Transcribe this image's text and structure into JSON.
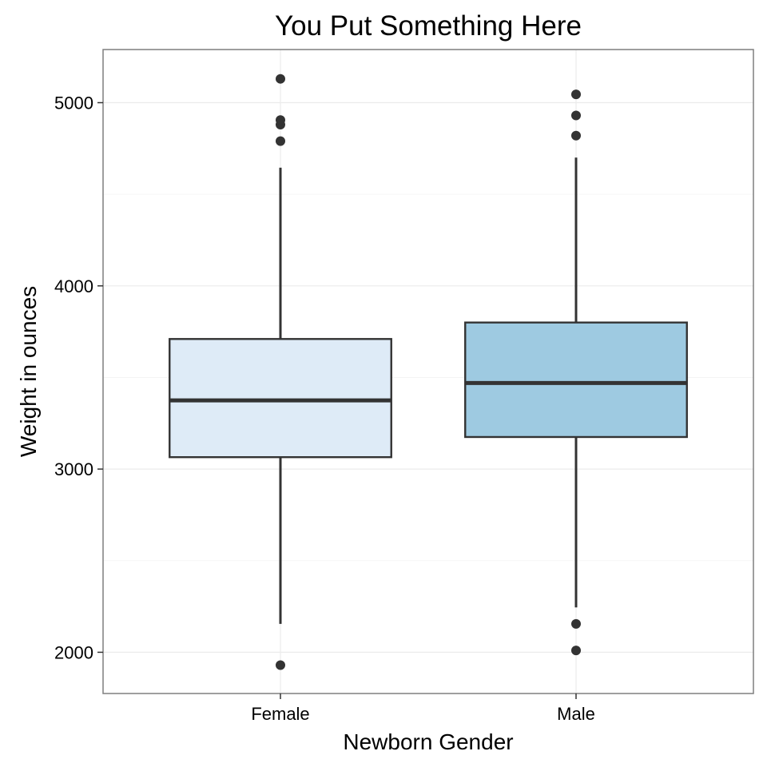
{
  "chart_data": {
    "type": "box",
    "title": "You Put Something Here",
    "xlabel": "Newborn Gender",
    "ylabel": "Weight in ounces",
    "categories": [
      "Female",
      "Male"
    ],
    "ylim": [
      1775,
      5290
    ],
    "yticks": [
      2000,
      3000,
      4000,
      5000
    ],
    "yticks_labels": [
      "2000",
      "3000",
      "4000",
      "5000"
    ],
    "grid": true,
    "legend": "none",
    "boxes": [
      {
        "category": "Female",
        "whisker_low": 2155,
        "q1": 3065,
        "median": 3375,
        "q3": 3710,
        "whisker_high": 4645,
        "fill": "#deebf7",
        "outliers": [
          1930,
          4790,
          4880,
          4905,
          5130
        ]
      },
      {
        "category": "Male",
        "whisker_low": 2245,
        "q1": 3175,
        "median": 3470,
        "q3": 3800,
        "whisker_high": 4700,
        "fill": "#9ecae1",
        "outliers": [
          2010,
          2155,
          4820,
          4930,
          5045
        ]
      }
    ]
  }
}
